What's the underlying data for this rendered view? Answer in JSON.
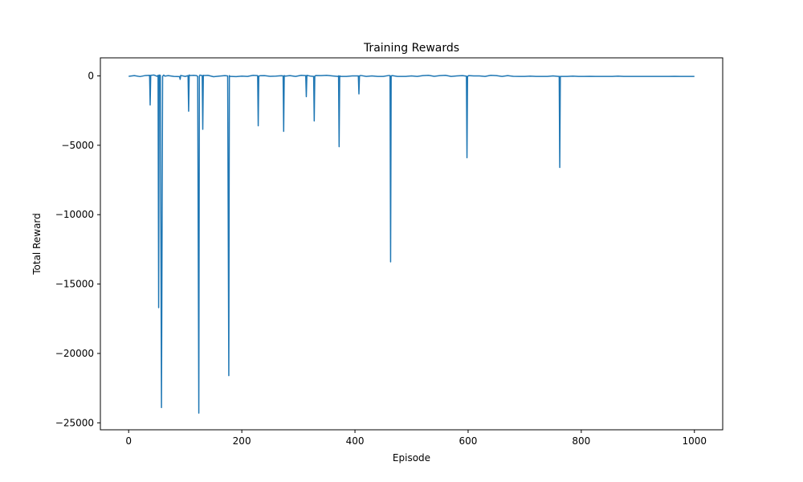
{
  "chart_data": {
    "type": "line",
    "title": "Training Rewards",
    "xlabel": "Episode",
    "ylabel": "Total Reward",
    "xlim": [
      -50,
      1050
    ],
    "ylim": [
      -25500,
      1300
    ],
    "x_ticks": [
      0,
      200,
      400,
      600,
      800,
      1000
    ],
    "y_ticks": [
      0,
      -5000,
      -10000,
      -15000,
      -20000,
      -25000
    ],
    "x_tick_labels": [
      "0",
      "200",
      "400",
      "600",
      "800",
      "1000"
    ],
    "y_tick_labels": [
      "0",
      "−5000",
      "−10000",
      "−15000",
      "−20000",
      "−25000"
    ],
    "grid": false,
    "legend": "none",
    "series": [
      {
        "color": "#1f77b4",
        "x": [
          0,
          10,
          20,
          30,
          37,
          38,
          39,
          45,
          50,
          52,
          53,
          54,
          56,
          58,
          60,
          61,
          62,
          64,
          70,
          80,
          90,
          91,
          92,
          100,
          105,
          106,
          107,
          109,
          115,
          120,
          122,
          124,
          125,
          126,
          130,
          131,
          132,
          134,
          140,
          150,
          160,
          170,
          175,
          177,
          178,
          179,
          181,
          190,
          200,
          210,
          220,
          228,
          229,
          230,
          232,
          240,
          250,
          260,
          270,
          273,
          274,
          275,
          277,
          285,
          295,
          305,
          313,
          314,
          315,
          317,
          322,
          327,
          328,
          329,
          331,
          340,
          350,
          360,
          370,
          371,
          372,
          373,
          375,
          385,
          395,
          406,
          407,
          408,
          410,
          420,
          430,
          440,
          450,
          460,
          462,
          463,
          464,
          466,
          475,
          490,
          500,
          510,
          520,
          530,
          540,
          550,
          560,
          570,
          580,
          590,
          597,
          598,
          599,
          601,
          610,
          620,
          630,
          640,
          650,
          660,
          670,
          680,
          690,
          700,
          710,
          720,
          730,
          740,
          750,
          760,
          761,
          762,
          763,
          765,
          775,
          785,
          795,
          805,
          815,
          825,
          835,
          845,
          855,
          865,
          875,
          885,
          895,
          905,
          915,
          925,
          935,
          945,
          955,
          965,
          975,
          985,
          1000
        ],
        "y": [
          -30,
          20,
          -50,
          30,
          40,
          -2100,
          40,
          60,
          -30,
          40,
          -16700,
          60,
          40,
          -23900,
          -30,
          20,
          60,
          -20,
          20,
          -40,
          -50,
          -250,
          30,
          -40,
          20,
          -2550,
          60,
          30,
          40,
          20,
          -40,
          -24300,
          -30,
          60,
          20,
          -3850,
          40,
          30,
          40,
          -60,
          -20,
          20,
          0,
          -21600,
          20,
          -40,
          -40,
          -50,
          -20,
          -40,
          40,
          20,
          -3600,
          -20,
          10,
          20,
          -30,
          -20,
          10,
          0,
          -4000,
          20,
          -20,
          20,
          -40,
          40,
          20,
          -1500,
          40,
          20,
          -20,
          -40,
          -3250,
          -20,
          30,
          20,
          40,
          0,
          -40,
          0,
          -5100,
          0,
          -40,
          -40,
          0,
          0,
          -1300,
          0,
          30,
          -40,
          0,
          -40,
          -40,
          30,
          20,
          -13400,
          0,
          20,
          -40,
          -40,
          0,
          -40,
          20,
          40,
          -30,
          20,
          40,
          -40,
          0,
          20,
          -20,
          -5900,
          -40,
          20,
          0,
          0,
          -40,
          40,
          20,
          -40,
          20,
          -30,
          -40,
          -40,
          -20,
          -40,
          -40,
          -40,
          0,
          -40,
          -40,
          -6600,
          -40,
          -40,
          -40,
          -20,
          -40,
          -40,
          -30,
          -40,
          -40,
          -40,
          -40,
          -20,
          -40,
          -40,
          -40,
          -40,
          -40,
          -40,
          -40,
          -40,
          -40,
          -30,
          -40,
          -40,
          -40
        ]
      }
    ]
  }
}
